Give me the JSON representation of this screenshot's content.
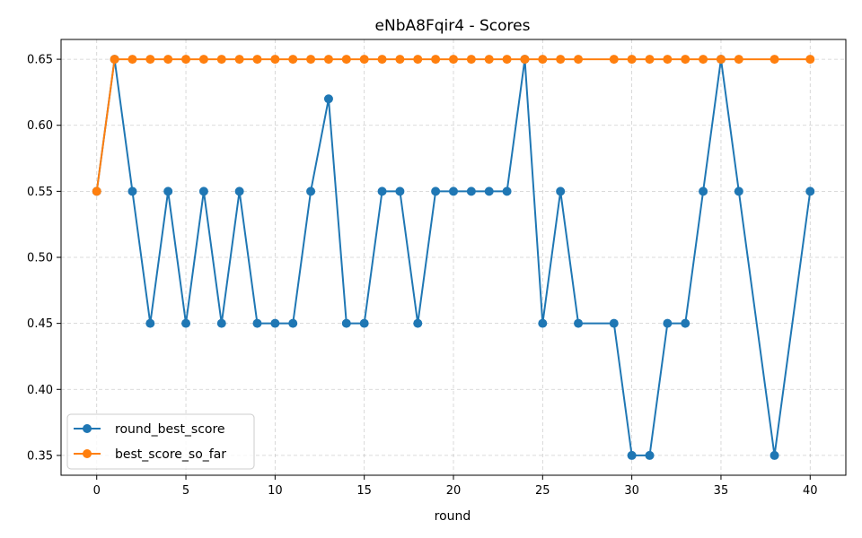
{
  "chart_data": {
    "type": "line",
    "title": "eNbA8Fqir4 - Scores",
    "xlabel": "round",
    "ylabel": "",
    "xlim": [
      -2,
      42
    ],
    "ylim": [
      0.335,
      0.665
    ],
    "xticks": [
      0,
      5,
      10,
      15,
      20,
      25,
      30,
      35,
      40
    ],
    "yticks": [
      0.35,
      0.4,
      0.45,
      0.5,
      0.55,
      0.6,
      0.65
    ],
    "grid": true,
    "legend_position": "bottom-left",
    "series": [
      {
        "name": "round_best_score",
        "color": "#1f77b4",
        "x": [
          0,
          1,
          2,
          3,
          4,
          5,
          6,
          7,
          8,
          9,
          10,
          11,
          12,
          13,
          14,
          15,
          16,
          17,
          18,
          19,
          20,
          21,
          22,
          23,
          24,
          25,
          26,
          27,
          29,
          30,
          31,
          32,
          33,
          34,
          35,
          36,
          38,
          40
        ],
        "values": [
          0.55,
          0.65,
          0.55,
          0.45,
          0.55,
          0.45,
          0.55,
          0.45,
          0.55,
          0.45,
          0.45,
          0.45,
          0.55,
          0.62,
          0.45,
          0.45,
          0.55,
          0.55,
          0.45,
          0.55,
          0.55,
          0.55,
          0.55,
          0.55,
          0.65,
          0.45,
          0.55,
          0.45,
          0.45,
          0.35,
          0.35,
          0.45,
          0.45,
          0.55,
          0.65,
          0.55,
          0.35,
          0.55
        ]
      },
      {
        "name": "best_score_so_far",
        "color": "#ff7f0e",
        "x": [
          0,
          1,
          2,
          3,
          4,
          5,
          6,
          7,
          8,
          9,
          10,
          11,
          12,
          13,
          14,
          15,
          16,
          17,
          18,
          19,
          20,
          21,
          22,
          23,
          24,
          25,
          26,
          27,
          29,
          30,
          31,
          32,
          33,
          34,
          35,
          36,
          38,
          40
        ],
        "values": [
          0.55,
          0.65,
          0.65,
          0.65,
          0.65,
          0.65,
          0.65,
          0.65,
          0.65,
          0.65,
          0.65,
          0.65,
          0.65,
          0.65,
          0.65,
          0.65,
          0.65,
          0.65,
          0.65,
          0.65,
          0.65,
          0.65,
          0.65,
          0.65,
          0.65,
          0.65,
          0.65,
          0.65,
          0.65,
          0.65,
          0.65,
          0.65,
          0.65,
          0.65,
          0.65,
          0.65,
          0.65,
          0.65
        ]
      }
    ]
  }
}
